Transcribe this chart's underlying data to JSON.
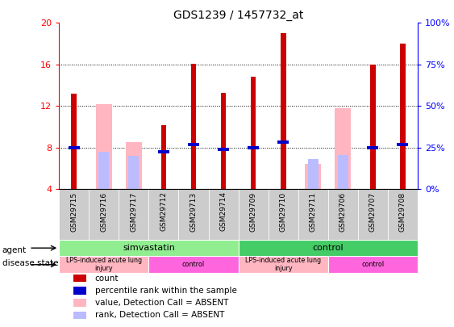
{
  "title": "GDS1239 / 1457732_at",
  "samples": [
    "GSM29715",
    "GSM29716",
    "GSM29717",
    "GSM29712",
    "GSM29713",
    "GSM29714",
    "GSM29709",
    "GSM29710",
    "GSM29711",
    "GSM29706",
    "GSM29707",
    "GSM29708"
  ],
  "count_values": [
    13.2,
    null,
    null,
    10.2,
    16.1,
    13.3,
    14.8,
    19.0,
    null,
    null,
    16.0,
    18.0
  ],
  "pink_values": [
    null,
    12.2,
    8.5,
    null,
    null,
    null,
    null,
    null,
    6.4,
    11.8,
    null,
    null
  ],
  "blue_percentile": [
    8.0,
    null,
    null,
    7.6,
    8.3,
    7.8,
    8.0,
    8.5,
    null,
    null,
    8.0,
    8.3
  ],
  "light_blue_values": [
    null,
    7.6,
    7.2,
    null,
    null,
    null,
    null,
    null,
    6.9,
    7.3,
    null,
    null
  ],
  "ylim": [
    4,
    20
  ],
  "yticks": [
    4,
    8,
    12,
    16,
    20
  ],
  "right_yticks": [
    0,
    25,
    50,
    75,
    100
  ],
  "right_yticklabels": [
    "0%",
    "25%",
    "50%",
    "75%",
    "100%"
  ],
  "agent_groups": [
    {
      "label": "simvastatin",
      "start": 0,
      "end": 6,
      "color": "#90EE90"
    },
    {
      "label": "control",
      "start": 6,
      "end": 12,
      "color": "#44CC66"
    }
  ],
  "disease_groups": [
    {
      "label": "LPS-induced acute lung\ninjury",
      "start": 0,
      "end": 3,
      "color": "#FFB6C1"
    },
    {
      "label": "control",
      "start": 3,
      "end": 6,
      "color": "#FF66DD"
    },
    {
      "label": "LPS-induced acute lung\ninjury",
      "start": 6,
      "end": 9,
      "color": "#FFB6C1"
    },
    {
      "label": "control",
      "start": 9,
      "end": 12,
      "color": "#FF66DD"
    }
  ],
  "bar_color_red": "#CC0000",
  "bar_color_pink": "#FFB6C1",
  "bar_color_blue": "#0000CC",
  "bar_color_lightblue": "#BBBBFF",
  "legend_items": [
    [
      "#CC0000",
      "count"
    ],
    [
      "#0000CC",
      "percentile rank within the sample"
    ],
    [
      "#FFB6C1",
      "value, Detection Call = ABSENT"
    ],
    [
      "#BBBBFF",
      "rank, Detection Call = ABSENT"
    ]
  ]
}
